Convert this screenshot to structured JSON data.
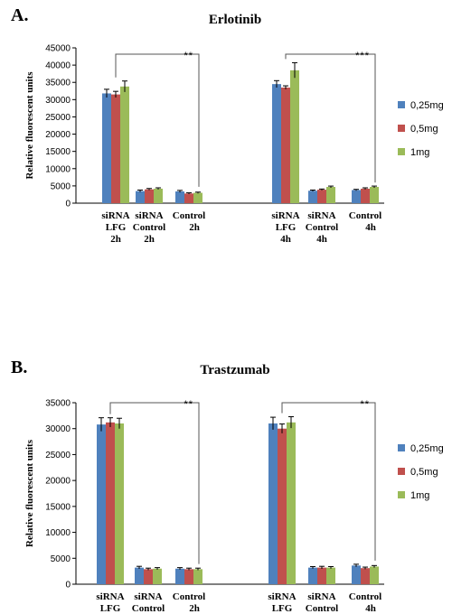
{
  "chart_data": [
    {
      "panel_letter": "A.",
      "type": "bar",
      "title": "Erlotinib",
      "ylabel": "Relative fluorescent units",
      "xlabel": "",
      "ylim": [
        0,
        45000
      ],
      "yticks": [
        0,
        5000,
        10000,
        15000,
        20000,
        25000,
        30000,
        35000,
        40000,
        45000
      ],
      "grid": false,
      "legend_position": "right",
      "categories": [
        [
          "siRNA",
          "LFG",
          "2h"
        ],
        [
          "siRNA",
          "Control",
          "2h"
        ],
        [
          "Control",
          "2h"
        ],
        [
          "siRNA",
          "LFG",
          "4h"
        ],
        [
          "siRNA",
          "Control",
          "4h"
        ],
        [
          "Control",
          "4h"
        ]
      ],
      "series": [
        {
          "name": "0,25mg",
          "color": "#4f81bd",
          "values": [
            31800,
            3500,
            3400,
            34500,
            3600,
            3800
          ],
          "errors": [
            1200,
            300,
            300,
            1000,
            200,
            200
          ]
        },
        {
          "name": "0,5mg",
          "color": "#c0504d",
          "values": [
            31500,
            4000,
            2800,
            33500,
            3900,
            4200
          ],
          "errors": [
            900,
            250,
            200,
            500,
            200,
            250
          ]
        },
        {
          "name": "1mg",
          "color": "#9bbb59",
          "values": [
            33800,
            4200,
            3000,
            38500,
            4700,
            4700
          ],
          "errors": [
            1600,
            250,
            200,
            2200,
            250,
            250
          ]
        }
      ],
      "significance": [
        {
          "from": 0,
          "to": 2,
          "label": "**"
        },
        {
          "from": 3,
          "to": 5,
          "label": "***"
        }
      ]
    },
    {
      "panel_letter": "B.",
      "type": "bar",
      "title": "Trastzumab",
      "ylabel": "Relative fluorescent units",
      "xlabel": "",
      "ylim": [
        0,
        35000
      ],
      "yticks": [
        0,
        5000,
        10000,
        15000,
        20000,
        25000,
        30000,
        35000
      ],
      "grid": false,
      "legend_position": "right",
      "categories": [
        [
          "siRNA",
          "LFG",
          "2h"
        ],
        [
          "siRNA",
          "Control",
          "2h"
        ],
        [
          "Control",
          "2h"
        ],
        [
          "siRNA",
          "LFG",
          "4h"
        ],
        [
          "siRNA",
          "Control",
          "4h"
        ],
        [
          "Control",
          "4h"
        ]
      ],
      "series": [
        {
          "name": "0,25mg",
          "color": "#4f81bd",
          "values": [
            30800,
            3200,
            3000,
            31000,
            3200,
            3600
          ],
          "errors": [
            1300,
            250,
            200,
            1200,
            200,
            250
          ]
        },
        {
          "name": "0,5mg",
          "color": "#c0504d",
          "values": [
            31200,
            2900,
            2900,
            30000,
            3200,
            3100
          ],
          "errors": [
            900,
            200,
            200,
            900,
            250,
            200
          ]
        },
        {
          "name": "1mg",
          "color": "#9bbb59",
          "values": [
            31000,
            3000,
            2900,
            31200,
            3200,
            3400
          ],
          "errors": [
            1000,
            200,
            200,
            1100,
            200,
            200
          ]
        }
      ],
      "significance": [
        {
          "from": 0,
          "to": 2,
          "label": "**"
        },
        {
          "from": 3,
          "to": 5,
          "label": "**"
        }
      ]
    }
  ]
}
